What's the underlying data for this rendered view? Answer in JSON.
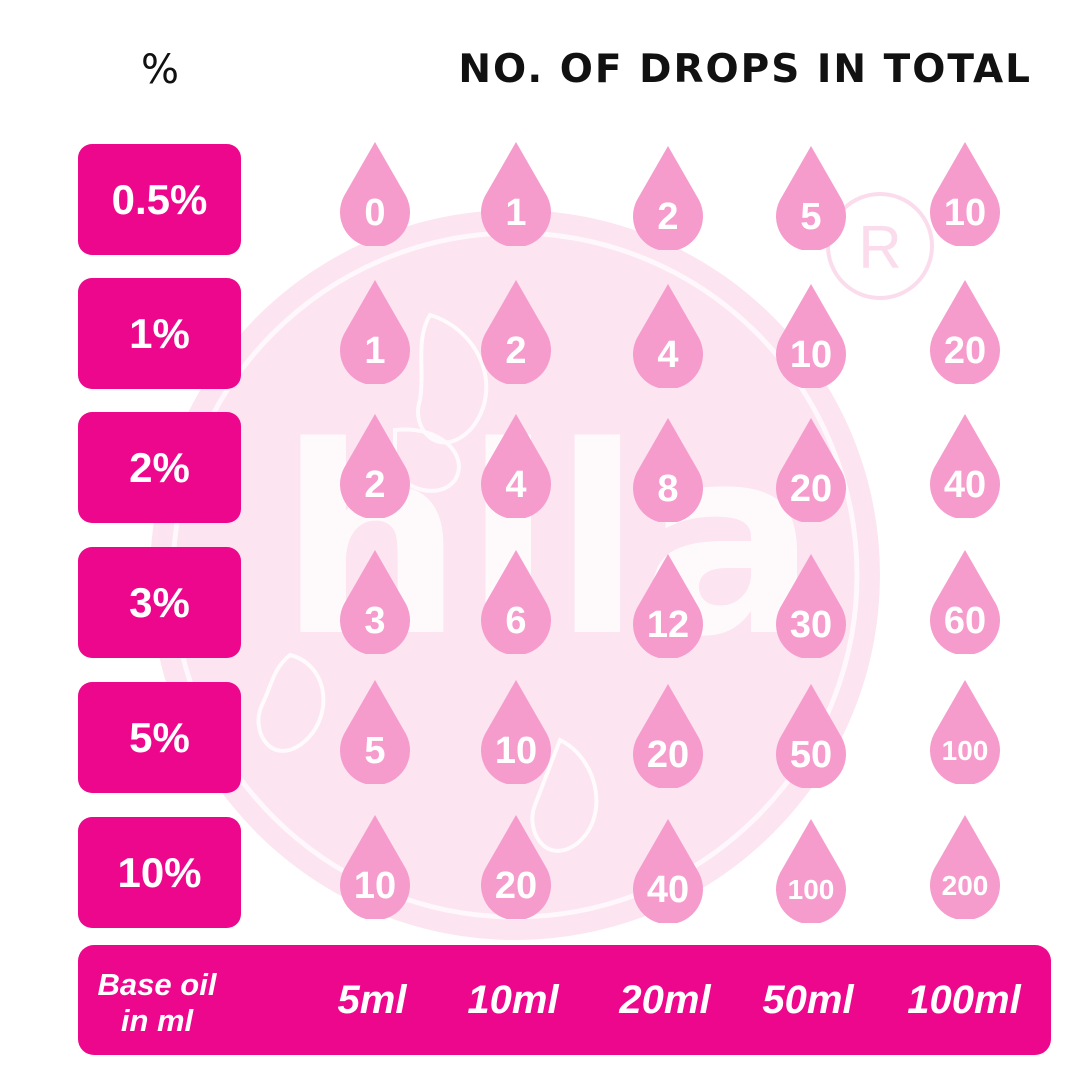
{
  "header": {
    "percent_label": "%",
    "drops_title": "NO. OF DROPS IN TOTAL"
  },
  "watermark": {
    "text": "hila",
    "mark": "R",
    "ring_color": "#fbdcec",
    "fill_color": "#fce4f0"
  },
  "colors": {
    "accent": "#ec078d",
    "drop": "#f59ccd",
    "text_on_accent": "#ffffff"
  },
  "table": {
    "rows": [
      {
        "percent": "0.5%",
        "drops": [
          "0",
          "1",
          "2",
          "5",
          "10"
        ]
      },
      {
        "percent": "1%",
        "drops": [
          "1",
          "2",
          "4",
          "10",
          "20"
        ]
      },
      {
        "percent": "2%",
        "drops": [
          "2",
          "4",
          "8",
          "20",
          "40"
        ]
      },
      {
        "percent": "3%",
        "drops": [
          "3",
          "6",
          "12",
          "30",
          "60"
        ]
      },
      {
        "percent": "5%",
        "drops": [
          "5",
          "10",
          "20",
          "50",
          "100"
        ]
      },
      {
        "percent": "10%",
        "drops": [
          "10",
          "20",
          "40",
          "100",
          "200"
        ]
      }
    ]
  },
  "base_oil": {
    "label_line1": "Base oil",
    "label_line2": "in ml",
    "volumes": [
      "5ml",
      "10ml",
      "20ml",
      "50ml",
      "100ml"
    ]
  }
}
